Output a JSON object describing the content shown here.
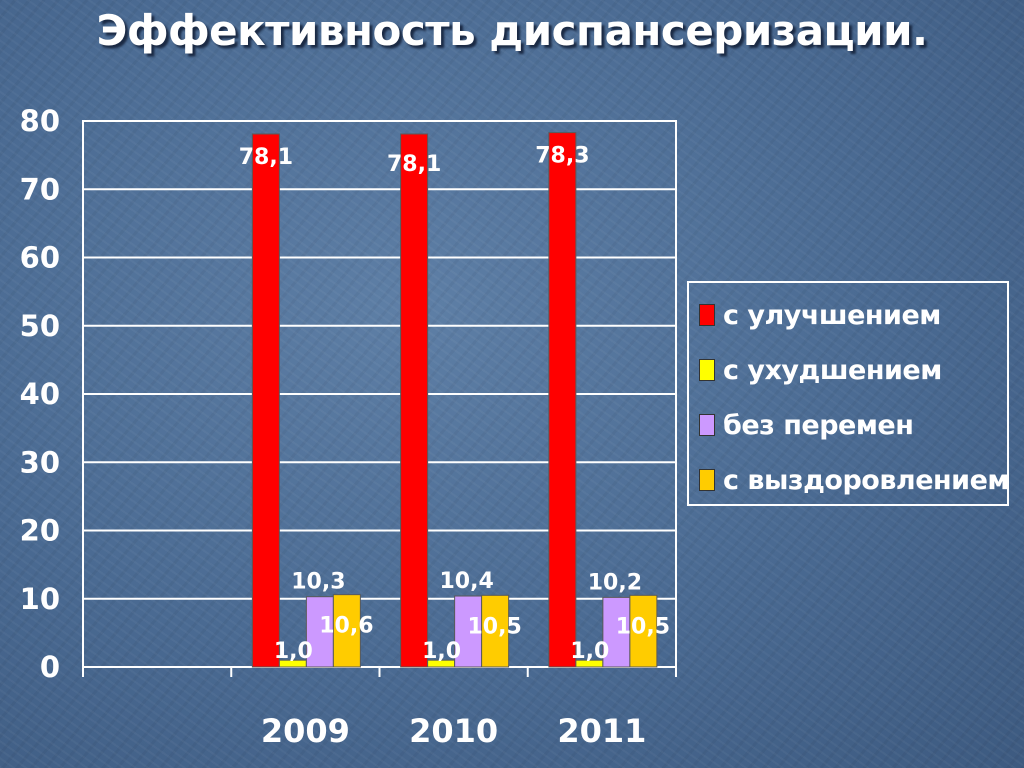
{
  "chart_data": {
    "type": "bar",
    "title": "Эффективность диспансеризации.",
    "categories": [
      "2009",
      "2010",
      "2011"
    ],
    "series": [
      {
        "name": "с улучшением",
        "color": "#ff0000",
        "values": [
          78.1,
          78.1,
          78.3
        ],
        "labels": [
          "78,1",
          "78,1",
          "78,3"
        ]
      },
      {
        "name": "с ухудшением",
        "color": "#ffff00",
        "values": [
          1.0,
          1.0,
          1.0
        ],
        "labels": [
          "1,0",
          "1,0",
          "1,0"
        ]
      },
      {
        "name": "без перемен",
        "color": "#cc99ff",
        "values": [
          10.3,
          10.4,
          10.2
        ],
        "labels": [
          "10,3",
          "10,4",
          "10,2"
        ]
      },
      {
        "name": "с выздоровлением",
        "color": "#ffcc00",
        "values": [
          10.6,
          10.5,
          10.5
        ],
        "labels": [
          "10,6",
          "10,5",
          "10,5"
        ]
      }
    ],
    "yticks": [
      "0",
      "10",
      "20",
      "30",
      "40",
      "50",
      "60",
      "70",
      "80"
    ],
    "ylim": [
      0,
      80
    ],
    "grid": true,
    "legend": "right"
  }
}
